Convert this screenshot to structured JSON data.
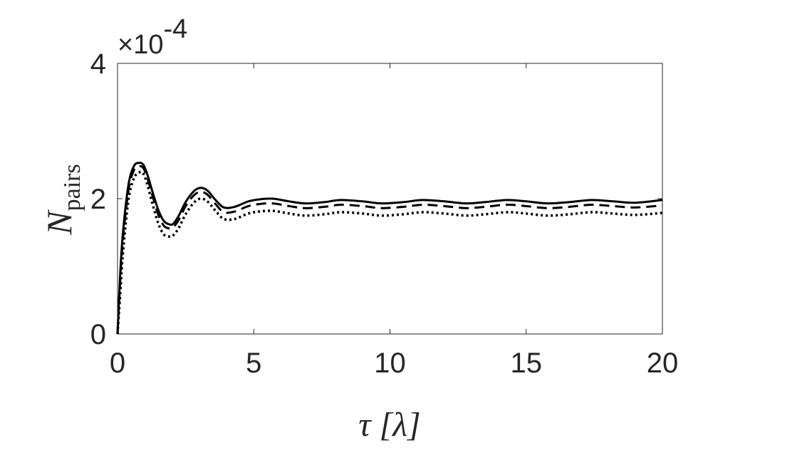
{
  "chart_data": {
    "type": "line",
    "title": "",
    "xlabel": "τ [λ]",
    "ylabel": "N_pairs",
    "ylabel_main": "N",
    "ylabel_sub": "pairs",
    "y_exponent_label": {
      "base": "×10",
      "exponent": "-4"
    },
    "xlim": [
      0,
      20
    ],
    "ylim": [
      0,
      4
    ],
    "x_ticks": [
      0,
      5,
      10,
      15,
      20
    ],
    "x_tick_labels": [
      "0",
      "5",
      "10",
      "15",
      "20"
    ],
    "y_ticks": [
      0,
      2,
      4
    ],
    "y_tick_labels": [
      "0",
      "2",
      "4"
    ],
    "grid": false,
    "legend": "none",
    "series": [
      {
        "style": "solid",
        "color": "#000000",
        "x": [
          0,
          0.1,
          0.2,
          0.4,
          0.6,
          0.8,
          0.95,
          1.1,
          1.3,
          1.5,
          1.7,
          1.9,
          2.05,
          2.25,
          2.5,
          2.8,
          3.05,
          3.3,
          3.6,
          3.9,
          4.3,
          4.8,
          5.2,
          5.7,
          6.3,
          6.9,
          7.6,
          8.2,
          9.0,
          9.7,
          10.5,
          11.2,
          12.0,
          12.8,
          13.5,
          14.3,
          15.0,
          15.8,
          16.6,
          17.4,
          18.2,
          19.0,
          20.0
        ],
        "y": [
          0,
          0.9,
          1.5,
          2.2,
          2.48,
          2.53,
          2.5,
          2.35,
          2.08,
          1.83,
          1.67,
          1.62,
          1.63,
          1.75,
          1.95,
          2.11,
          2.16,
          2.12,
          1.98,
          1.87,
          1.88,
          1.96,
          1.99,
          2.0,
          1.96,
          1.93,
          1.95,
          1.98,
          1.96,
          1.93,
          1.95,
          1.98,
          1.96,
          1.93,
          1.95,
          1.98,
          1.96,
          1.93,
          1.95,
          1.98,
          1.96,
          1.94,
          1.98
        ]
      },
      {
        "style": "dashed",
        "color": "#000000",
        "x": [
          0,
          0.1,
          0.2,
          0.4,
          0.6,
          0.8,
          0.95,
          1.1,
          1.3,
          1.5,
          1.7,
          1.9,
          2.05,
          2.25,
          2.5,
          2.8,
          3.05,
          3.3,
          3.6,
          3.9,
          4.3,
          4.8,
          5.2,
          5.7,
          6.3,
          6.9,
          7.6,
          8.2,
          9.0,
          9.7,
          10.5,
          11.2,
          12.0,
          12.8,
          13.5,
          14.3,
          15.0,
          15.8,
          16.6,
          17.4,
          18.2,
          19.0,
          20.0
        ],
        "y": [
          0,
          0.8,
          1.4,
          2.12,
          2.42,
          2.48,
          2.45,
          2.3,
          2.02,
          1.76,
          1.6,
          1.56,
          1.58,
          1.69,
          1.89,
          2.05,
          2.1,
          2.06,
          1.92,
          1.8,
          1.81,
          1.89,
          1.92,
          1.93,
          1.89,
          1.86,
          1.88,
          1.91,
          1.89,
          1.86,
          1.88,
          1.91,
          1.89,
          1.86,
          1.88,
          1.91,
          1.89,
          1.86,
          1.88,
          1.91,
          1.89,
          1.87,
          1.9
        ]
      },
      {
        "style": "dotted",
        "color": "#000000",
        "x": [
          0,
          0.1,
          0.2,
          0.4,
          0.6,
          0.8,
          0.95,
          1.1,
          1.3,
          1.5,
          1.7,
          1.9,
          2.05,
          2.25,
          2.5,
          2.8,
          3.05,
          3.3,
          3.6,
          3.9,
          4.3,
          4.8,
          5.2,
          5.7,
          6.3,
          6.9,
          7.6,
          8.2,
          9.0,
          9.7,
          10.5,
          11.2,
          12.0,
          12.8,
          13.5,
          14.3,
          15.0,
          15.8,
          16.6,
          17.4,
          18.2,
          19.0,
          20.0
        ],
        "y": [
          0,
          0.6,
          1.2,
          1.98,
          2.3,
          2.39,
          2.37,
          2.2,
          1.9,
          1.63,
          1.47,
          1.44,
          1.46,
          1.57,
          1.77,
          1.94,
          2.0,
          1.96,
          1.82,
          1.7,
          1.7,
          1.78,
          1.81,
          1.82,
          1.78,
          1.75,
          1.77,
          1.8,
          1.78,
          1.75,
          1.77,
          1.8,
          1.78,
          1.75,
          1.77,
          1.8,
          1.78,
          1.75,
          1.77,
          1.8,
          1.78,
          1.76,
          1.79
        ]
      }
    ]
  }
}
